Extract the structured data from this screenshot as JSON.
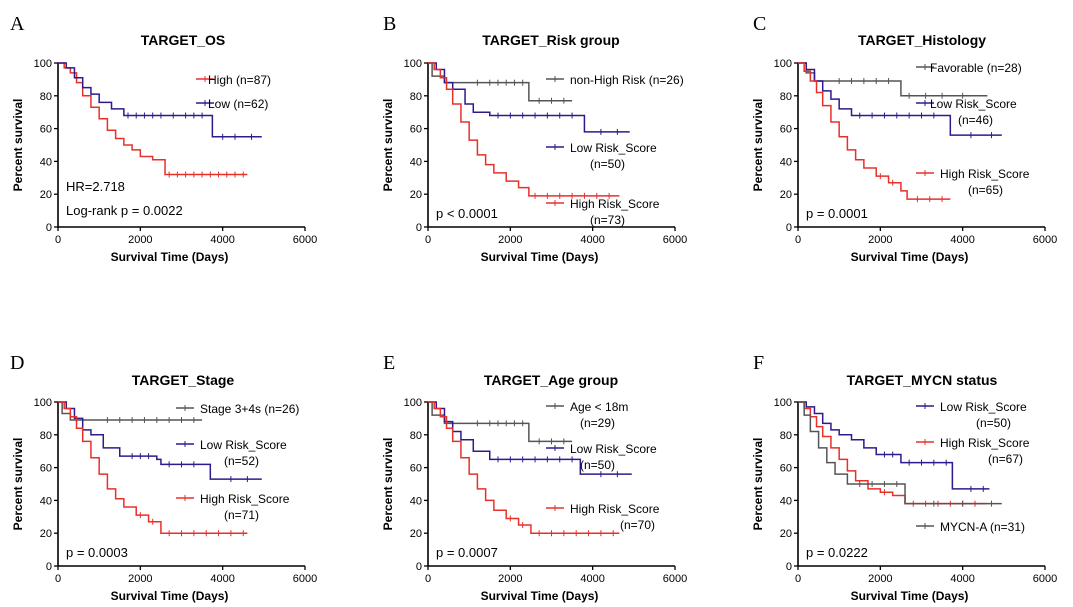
{
  "figure": {
    "x_axis_label": "Survival Time (Days)",
    "y_axis_label": "Percent survival",
    "x_ticks": [
      0,
      2000,
      4000,
      6000
    ],
    "y_ticks": [
      0,
      20,
      40,
      60,
      80,
      100
    ]
  },
  "colors": {
    "red": "#e8302b",
    "blue": "#2e1a8c",
    "gray": "#555555"
  },
  "chart_data": [
    {
      "type": "line",
      "panel": "A",
      "title": "TARGET_OS",
      "xlabel": "Survival Time (Days)",
      "ylabel": "Percent survival",
      "xlim": [
        0,
        6000
      ],
      "ylim": [
        0,
        100
      ],
      "annotations": [
        "HR=2.718",
        "Log-rank p = 0.0022"
      ],
      "series": [
        {
          "name": "High (n=87)",
          "color": "red",
          "x": [
            0,
            150,
            300,
            450,
            600,
            800,
            1000,
            1200,
            1400,
            1600,
            1800,
            2000,
            2300,
            2600,
            3000,
            3500,
            4600
          ],
          "y": [
            100,
            97,
            94,
            88,
            80,
            73,
            66,
            59,
            54,
            50,
            47,
            43,
            41,
            32,
            32,
            32,
            32
          ],
          "censor_x": [
            2700,
            2900,
            3100,
            3300,
            3500,
            3700,
            3900,
            4100,
            4300,
            4500
          ]
        },
        {
          "name": "Low (n=62)",
          "color": "blue",
          "x": [
            0,
            200,
            400,
            600,
            800,
            1000,
            1300,
            1600,
            3750,
            3750,
            4950
          ],
          "y": [
            100,
            97,
            91,
            85,
            81,
            76,
            72,
            68,
            65,
            55,
            55
          ],
          "censor_x": [
            1700,
            1900,
            2100,
            2300,
            2500,
            2800,
            3100,
            3300,
            3500,
            4000,
            4300,
            4700
          ]
        }
      ]
    },
    {
      "type": "line",
      "panel": "B",
      "title": "TARGET_Risk group",
      "xlabel": "Survival Time (Days)",
      "ylabel": "Percent survival",
      "xlim": [
        0,
        6000
      ],
      "ylim": [
        0,
        100
      ],
      "annotations": [
        "p < 0.0001"
      ],
      "series": [
        {
          "name": "non-High Risk (n=26)",
          "color": "gray",
          "x": [
            0,
            100,
            400,
            2450,
            2450,
            3500
          ],
          "y": [
            100,
            92,
            88,
            88,
            77,
            77
          ],
          "censor_x": [
            1200,
            1500,
            1700,
            1900,
            2100,
            2300,
            2700,
            3000,
            3300
          ]
        },
        {
          "name": "Low Risk_Score (n=50)",
          "color": "blue",
          "x": [
            0,
            200,
            400,
            600,
            900,
            1100,
            1500,
            3800,
            3800,
            4900
          ],
          "y": [
            100,
            96,
            88,
            84,
            75,
            70,
            68,
            66,
            58,
            58
          ],
          "censor_x": [
            1700,
            2000,
            2300,
            2600,
            2900,
            3200,
            3500,
            4200,
            4600
          ]
        },
        {
          "name": "High Risk_Score (n=73)",
          "color": "red",
          "x": [
            0,
            150,
            300,
            450,
            600,
            800,
            1000,
            1200,
            1400,
            1600,
            1900,
            2200,
            2450,
            3000,
            4650
          ],
          "y": [
            100,
            96,
            91,
            84,
            75,
            64,
            53,
            44,
            38,
            33,
            28,
            24,
            19,
            19,
            19
          ],
          "censor_x": [
            2600,
            2900,
            3200,
            3500,
            3800,
            4100,
            4400
          ]
        }
      ]
    },
    {
      "type": "line",
      "panel": "C",
      "title": "TARGET_Histology",
      "xlabel": "Survival Time (Days)",
      "ylabel": "Percent survival",
      "xlim": [
        0,
        6000
      ],
      "ylim": [
        0,
        100
      ],
      "annotations": [
        "p = 0.0001"
      ],
      "series": [
        {
          "name": "Favorable (n=28)",
          "color": "gray",
          "x": [
            0,
            200,
            400,
            2500,
            2500,
            4600
          ],
          "y": [
            100,
            94,
            89,
            89,
            80,
            80
          ],
          "censor_x": [
            1000,
            1300,
            1600,
            1900,
            2200,
            2700,
            3100,
            3500,
            4000
          ]
        },
        {
          "name": "Low Risk_Score (n=46)",
          "color": "blue",
          "x": [
            0,
            200,
            400,
            600,
            800,
            1000,
            1300,
            3700,
            3700,
            4950
          ],
          "y": [
            100,
            96,
            89,
            83,
            78,
            72,
            68,
            67,
            56,
            56
          ],
          "censor_x": [
            1500,
            1800,
            2100,
            2400,
            2700,
            3000,
            3300,
            4200,
            4700
          ]
        },
        {
          "name": "High Risk_Score (n=65)",
          "color": "red",
          "x": [
            0,
            150,
            300,
            450,
            600,
            800,
            1000,
            1200,
            1400,
            1600,
            1900,
            2200,
            2500,
            2650,
            3700
          ],
          "y": [
            100,
            95,
            89,
            82,
            74,
            64,
            55,
            47,
            41,
            36,
            31,
            27,
            22,
            17,
            17
          ],
          "censor_x": [
            2000,
            2300,
            2900,
            3200,
            3500
          ]
        }
      ]
    },
    {
      "type": "line",
      "panel": "D",
      "title": "TARGET_Stage",
      "xlabel": "Survival Time (Days)",
      "ylabel": "Percent survival",
      "xlim": [
        0,
        6000
      ],
      "ylim": [
        0,
        100
      ],
      "annotations": [
        "p = 0.0003"
      ],
      "series": [
        {
          "name": "Stage 3+4s (n=26)",
          "color": "gray",
          "x": [
            0,
            100,
            300,
            3500
          ],
          "y": [
            100,
            93,
            89,
            89
          ],
          "censor_x": [
            1200,
            1500,
            1800,
            2100,
            2400,
            2700,
            3000,
            3300
          ]
        },
        {
          "name": "Low Risk_Score (n=52)",
          "color": "blue",
          "x": [
            0,
            200,
            400,
            600,
            800,
            1100,
            1500,
            2400,
            2500,
            3700,
            3700,
            4950
          ],
          "y": [
            100,
            96,
            90,
            83,
            80,
            72,
            67,
            65,
            62,
            62,
            53,
            53
          ],
          "censor_x": [
            1800,
            2000,
            2200,
            2700,
            3000,
            3300,
            4200,
            4600
          ]
        },
        {
          "name": "High Risk_Score (n=71)",
          "color": "red",
          "x": [
            0,
            150,
            300,
            450,
            600,
            800,
            1000,
            1200,
            1400,
            1600,
            1900,
            2200,
            2500,
            4600
          ],
          "y": [
            100,
            96,
            91,
            84,
            76,
            66,
            56,
            47,
            41,
            36,
            31,
            27,
            20,
            20
          ],
          "censor_x": [
            2000,
            2300,
            2700,
            3000,
            3300,
            3600,
            3900,
            4200,
            4500
          ]
        }
      ]
    },
    {
      "type": "line",
      "panel": "E",
      "title": "TARGET_Age group",
      "xlabel": "Survival Time (Days)",
      "ylabel": "Percent survival",
      "xlim": [
        0,
        6000
      ],
      "ylim": [
        0,
        100
      ],
      "annotations": [
        "p = 0.0007"
      ],
      "series": [
        {
          "name": "Age < 18m (n=29)",
          "color": "gray",
          "x": [
            0,
            100,
            400,
            2450,
            2450,
            3500
          ],
          "y": [
            100,
            92,
            87,
            87,
            76,
            76
          ],
          "censor_x": [
            1200,
            1500,
            1700,
            1900,
            2100,
            2300,
            2700,
            3000,
            3300
          ]
        },
        {
          "name": "Low Risk_Score (n=50)",
          "color": "blue",
          "x": [
            0,
            200,
            400,
            600,
            800,
            1100,
            1500,
            3700,
            3700,
            4950
          ],
          "y": [
            100,
            96,
            88,
            82,
            77,
            70,
            65,
            64,
            56,
            56
          ],
          "censor_x": [
            1700,
            2000,
            2300,
            2600,
            2900,
            3200,
            3500,
            4200,
            4600
          ]
        },
        {
          "name": "High Risk_Score (n=70)",
          "color": "red",
          "x": [
            0,
            150,
            300,
            450,
            600,
            800,
            1000,
            1200,
            1400,
            1600,
            1900,
            2200,
            2500,
            4650
          ],
          "y": [
            100,
            96,
            91,
            84,
            76,
            66,
            56,
            47,
            40,
            34,
            29,
            25,
            20,
            20
          ],
          "censor_x": [
            2000,
            2300,
            2700,
            3000,
            3300,
            3600,
            3900,
            4200,
            4500
          ]
        }
      ]
    },
    {
      "type": "line",
      "panel": "F",
      "title": "TARGET_MYCN status",
      "xlabel": "Survival Time (Days)",
      "ylabel": "Percent survival",
      "xlim": [
        0,
        6000
      ],
      "ylim": [
        0,
        100
      ],
      "annotations": [
        "p = 0.0222"
      ],
      "series": [
        {
          "name": "Low Risk_Score (n=50)",
          "color": "blue",
          "x": [
            0,
            200,
            400,
            600,
            800,
            1000,
            1300,
            1600,
            1900,
            2500,
            3750,
            3750,
            4650
          ],
          "y": [
            100,
            97,
            93,
            87,
            83,
            80,
            77,
            72,
            68,
            63,
            63,
            47,
            47
          ],
          "censor_x": [
            2100,
            2300,
            2700,
            3000,
            3300,
            3600,
            4200,
            4500
          ]
        },
        {
          "name": "High Risk_Score (n=67)",
          "color": "red",
          "x": [
            0,
            150,
            300,
            450,
            600,
            800,
            1000,
            1200,
            1400,
            1700,
            2000,
            2300,
            2600,
            4600
          ],
          "y": [
            100,
            96,
            91,
            85,
            79,
            72,
            65,
            58,
            52,
            47,
            45,
            43,
            38,
            38
          ],
          "censor_x": [
            2100,
            2800,
            3100,
            3400,
            3700,
            4000,
            4300
          ]
        },
        {
          "name": "MYCN-A (n=31)",
          "color": "gray",
          "x": [
            0,
            150,
            300,
            500,
            700,
            900,
            1200,
            2600,
            2600,
            4950
          ],
          "y": [
            100,
            92,
            82,
            72,
            63,
            56,
            50,
            47,
            38,
            38
          ],
          "censor_x": [
            1500,
            1800,
            2100,
            2400,
            3300,
            4000,
            4700
          ]
        }
      ]
    }
  ]
}
